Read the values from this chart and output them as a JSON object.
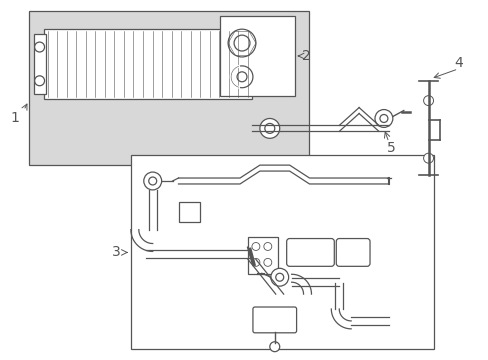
{
  "bg_color": "#ffffff",
  "line_color": "#555555",
  "fill_color": "#d8d8d8",
  "label_color": "#111111",
  "lw": 0.9
}
